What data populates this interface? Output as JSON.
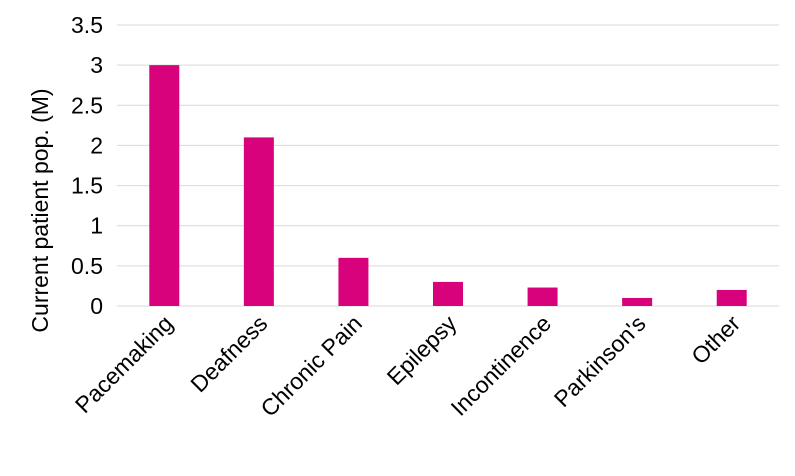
{
  "chart_data": {
    "type": "bar",
    "title": "",
    "xlabel": "",
    "ylabel": "Current patient pop. (M)",
    "categories": [
      "Pacemaking",
      "Deafness",
      "Chronic Pain",
      "Epilepsy",
      "Incontinence",
      "Parkinson's",
      "Other"
    ],
    "values": [
      3.0,
      2.1,
      0.6,
      0.3,
      0.23,
      0.1,
      0.2
    ],
    "ylim": [
      0,
      3.5
    ],
    "yticks": [
      "0",
      "0.5",
      "1",
      "1.5",
      "2",
      "2.5",
      "3",
      "3.5"
    ],
    "grid": true,
    "legend": "none",
    "bar_color": "#d9027d"
  }
}
